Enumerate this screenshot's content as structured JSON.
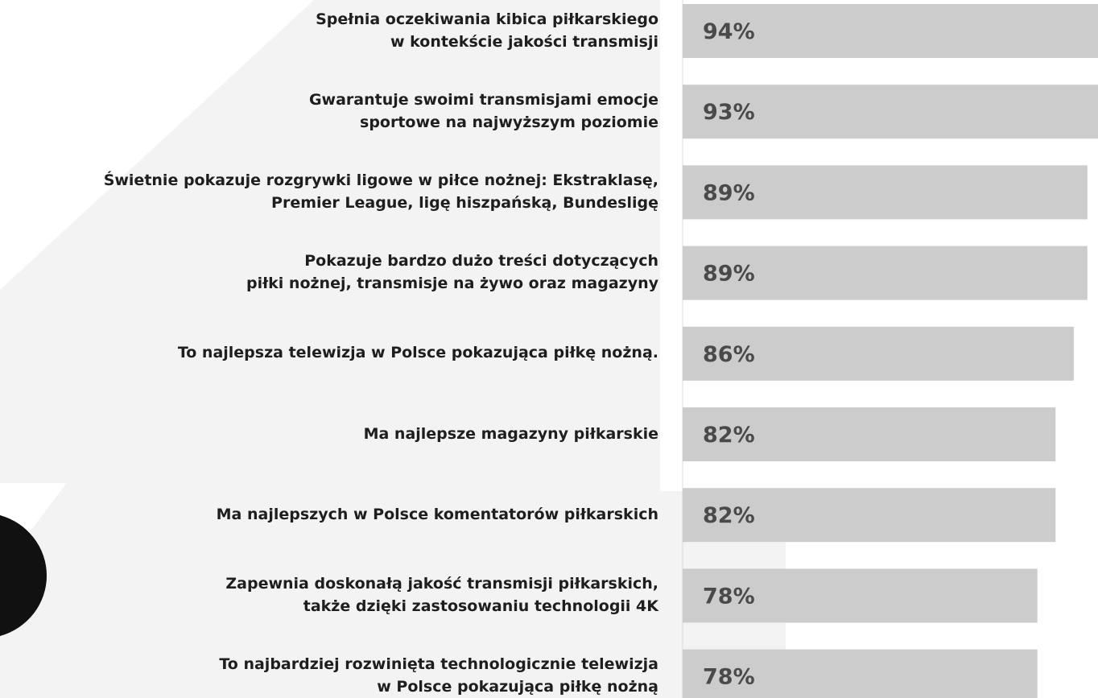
{
  "chart_data": {
    "type": "bar",
    "orientation": "horizontal",
    "color": "#cccccc",
    "categories": [
      "Spełnia oczekiwania kibica piłkarskiego\nw kontekście jakości transmisji",
      "Gwarantuje swoimi transmisjami emocje\nsportowe na najwyższym poziomie",
      "Świetnie pokazuje rozgrywki ligowe w piłce nożnej: Ekstraklasę,\nPremier League, ligę hiszpańską, Bundesligę",
      "Pokazuje bardzo dużo treści dotyczących\npiłki nożnej, transmisje na żywo oraz magazyny",
      "To najlepsza telewizja w Polsce pokazująca piłkę nożną.",
      "Ma najlepsze magazyny piłkarskie",
      "Ma najlepszych w Polsce komentatorów piłkarskich",
      "Zapewnia doskonałą jakość transmisji piłkarskich,\ntakże dzięki zastosowaniu technologii 4K",
      "To najbardziej rozwinięta technologicznie telewizja\nw Polsce pokazująca piłkę nożną"
    ],
    "values": [
      94,
      93,
      89,
      89,
      86,
      82,
      82,
      78,
      78
    ],
    "value_labels": [
      "94%",
      "93%",
      "89%",
      "89%",
      "86%",
      "82%",
      "82%",
      "78%",
      "78%"
    ]
  }
}
